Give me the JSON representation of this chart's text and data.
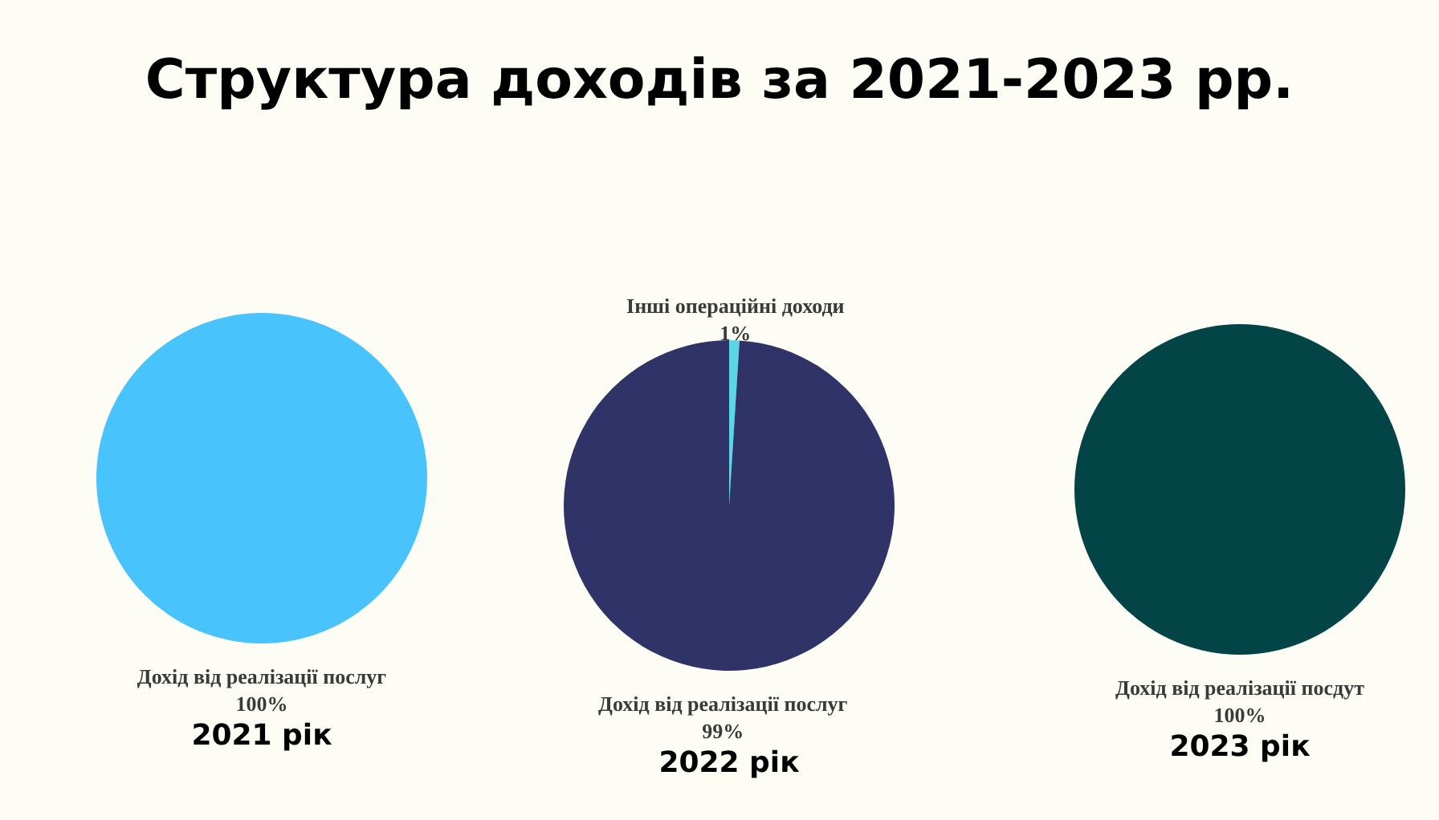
{
  "chart_data": [
    {
      "type": "pie",
      "title": "Структура доходів за 2021-2023 рр.",
      "xlabel": "2021 рік",
      "categories": [
        "Дохід від реалізації послуг"
      ],
      "values": [
        100
      ],
      "colors": [
        "#48c3fc"
      ],
      "value_labels": [
        "100%"
      ]
    },
    {
      "type": "pie",
      "xlabel": "2022 рік",
      "categories": [
        "Інші операційні доходи",
        "Дохід від реалізації послуг"
      ],
      "values": [
        1,
        99
      ],
      "colors": [
        "#5ad6e6",
        "#303368"
      ],
      "value_labels": [
        "1%",
        "99%"
      ]
    },
    {
      "type": "pie",
      "xlabel": "2023 рік",
      "categories": [
        "Дохід від реалізації посдут"
      ],
      "values": [
        100
      ],
      "colors": [
        "#034447"
      ],
      "value_labels": [
        "100%"
      ]
    }
  ]
}
